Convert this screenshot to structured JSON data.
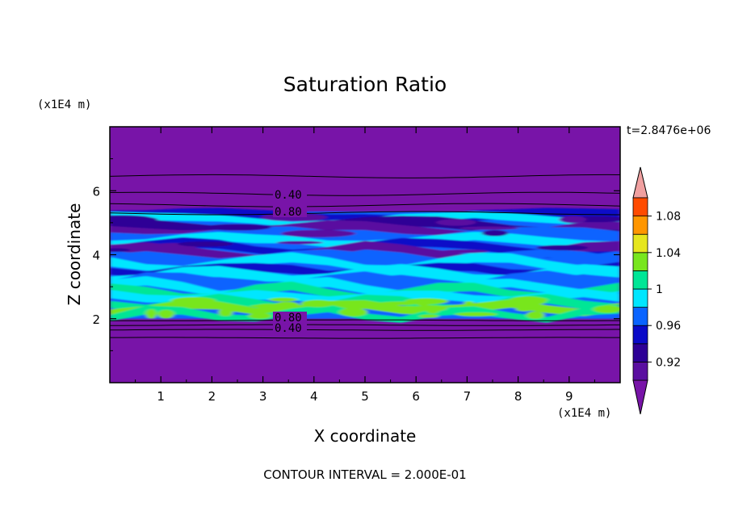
{
  "chart_data": {
    "type": "heatmap",
    "title": "Saturation Ratio",
    "xlabel": "X coordinate",
    "ylabel": "Z coordinate",
    "x_unit": "(x1E4 m)",
    "y_unit": "(x1E4 m)",
    "time_label": "t=2.8476e+06",
    "contour_note": "CONTOUR INTERVAL = 2.000E-01",
    "xlim": [
      0,
      10
    ],
    "ylim": [
      0,
      8
    ],
    "x_ticks": [
      "1",
      "2",
      "3",
      "4",
      "5",
      "6",
      "7",
      "8",
      "9"
    ],
    "y_ticks": [
      "2",
      "4",
      "6"
    ],
    "colorbar": {
      "ticks": [
        "0.92",
        "0.96",
        "1",
        "1.04",
        "1.08"
      ],
      "levels": [
        0.9,
        0.92,
        0.94,
        0.96,
        0.98,
        1.0,
        1.02,
        1.04,
        1.06,
        1.08,
        1.1
      ],
      "colors": [
        "#5a0fa0",
        "#2d0096",
        "#0a0ac8",
        "#0a64ff",
        "#00e6ff",
        "#00e696",
        "#78e61e",
        "#e6e61e",
        "#ff9600",
        "#ff4b00",
        "#eb2323"
      ],
      "over_color": "#f0a0a0",
      "under_color": "#7814a8"
    },
    "contour_labels": [
      "0.40",
      "0.80",
      "0.80",
      "0.40"
    ],
    "layers": [
      {
        "z_range": [
          5.3,
          8.0
        ],
        "level": "below 0.90"
      },
      {
        "z_range": [
          2.0,
          5.3
        ],
        "level": "0.92 to 1.00"
      },
      {
        "z_range": [
          0.0,
          2.0
        ],
        "level": "below 0.90"
      }
    ]
  }
}
